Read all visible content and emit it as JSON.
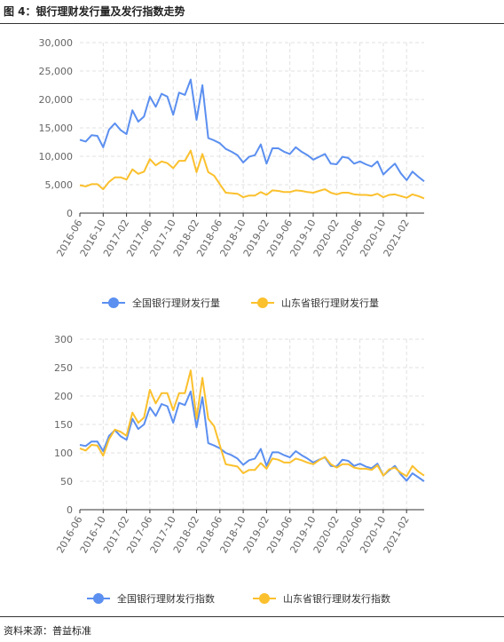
{
  "figure": {
    "title": "图 4：银行理财发行量及发行指数走势",
    "source": "资料来源：普益标准"
  },
  "colors": {
    "national": "#5b8ff0",
    "shandong": "#fbc02d"
  },
  "chart_data": [
    {
      "type": "line",
      "x_ticks": [
        "2016-06",
        "2016-10",
        "2017-02",
        "2017-06",
        "2017-10",
        "2018-02",
        "2018-06",
        "2018-10",
        "2019-02",
        "2019-06",
        "2019-10",
        "2020-02",
        "2020-06",
        "2020-10",
        "2021-02"
      ],
      "y_ticks": [
        "0",
        "5,000",
        "10,000",
        "15,000",
        "20,000",
        "25,000",
        "30,000"
      ],
      "ylim": [
        0,
        30000
      ],
      "grid": true,
      "legend_position": "bottom-center",
      "series": [
        {
          "name": "全国银行理财发行量",
          "color": "#5b8ff0",
          "values": [
            12900,
            12600,
            13700,
            13600,
            11600,
            14700,
            15800,
            14600,
            13900,
            18100,
            16100,
            17000,
            20500,
            18700,
            21000,
            20500,
            17300,
            21200,
            20800,
            23500,
            16400,
            22500,
            13200,
            12800,
            12300,
            11300,
            10800,
            10200,
            8900,
            9900,
            10200,
            12100,
            8700,
            11400,
            11400,
            10800,
            10400,
            11600,
            10800,
            10200,
            9400,
            9900,
            10400,
            8700,
            8600,
            9900,
            9700,
            8700,
            9100,
            8600,
            8200,
            9100,
            6800,
            7800,
            8700,
            7000,
            5800,
            7300,
            6400,
            5600
          ]
        },
        {
          "name": "山东省银行理财发行量",
          "color": "#fbc02d",
          "values": [
            4900,
            4700,
            5100,
            5100,
            4200,
            5500,
            6300,
            6300,
            5900,
            7700,
            6900,
            7300,
            9500,
            8400,
            9100,
            8800,
            7900,
            9200,
            9200,
            11000,
            7200,
            10400,
            7200,
            6600,
            5100,
            3600,
            3500,
            3400,
            2800,
            3100,
            3100,
            3700,
            3200,
            4000,
            3900,
            3700,
            3700,
            4000,
            3900,
            3700,
            3600,
            3900,
            4200,
            3600,
            3300,
            3600,
            3600,
            3300,
            3200,
            3200,
            3100,
            3400,
            2800,
            3200,
            3300,
            3000,
            2700,
            3300,
            3000,
            2600
          ]
        }
      ]
    },
    {
      "type": "line",
      "x_ticks": [
        "2016-06",
        "2016-10",
        "2017-02",
        "2017-06",
        "2017-10",
        "2018-02",
        "2018-06",
        "2018-10",
        "2019-02",
        "2019-06",
        "2019-10",
        "2020-02",
        "2020-06",
        "2020-10",
        "2021-02"
      ],
      "y_ticks": [
        "0",
        "50",
        "100",
        "150",
        "200",
        "250",
        "300"
      ],
      "ylim": [
        0,
        300
      ],
      "grid": true,
      "legend_position": "bottom-center",
      "series": [
        {
          "name": "全国银行理财发行指数",
          "color": "#5b8ff0",
          "values": [
            114,
            112,
            120,
            120,
            103,
            130,
            140,
            129,
            123,
            160,
            142,
            150,
            180,
            165,
            186,
            182,
            153,
            188,
            184,
            208,
            145,
            198,
            117,
            113,
            108,
            100,
            96,
            90,
            79,
            87,
            90,
            107,
            77,
            101,
            101,
            96,
            92,
            103,
            96,
            90,
            83,
            88,
            92,
            77,
            76,
            88,
            86,
            77,
            81,
            76,
            73,
            81,
            60,
            69,
            77,
            62,
            51,
            64,
            57,
            50
          ]
        },
        {
          "name": "山东省银行理财发行指数",
          "color": "#fbc02d",
          "values": [
            108,
            104,
            114,
            113,
            95,
            124,
            141,
            137,
            130,
            171,
            153,
            162,
            211,
            187,
            205,
            205,
            175,
            205,
            205,
            245,
            160,
            232,
            160,
            147,
            113,
            80,
            78,
            76,
            64,
            70,
            70,
            82,
            72,
            90,
            88,
            83,
            83,
            90,
            87,
            83,
            80,
            87,
            93,
            80,
            74,
            80,
            80,
            74,
            72,
            72,
            70,
            78,
            60,
            71,
            74,
            65,
            59,
            77,
            67,
            60
          ]
        }
      ]
    }
  ]
}
